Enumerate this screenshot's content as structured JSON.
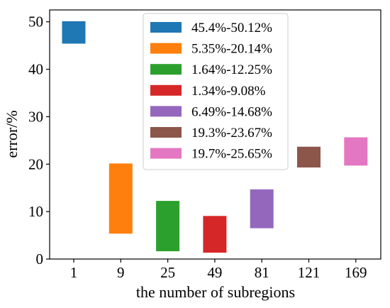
{
  "chart_data": {
    "type": "bar",
    "subtype": "floating-range",
    "xlabel": "the number of subregions",
    "ylabel": "error/%",
    "ylim": [
      0,
      52.5
    ],
    "yticks": [
      0,
      10,
      20,
      30,
      40,
      50
    ],
    "grid": false,
    "legend_position": "top-center",
    "categories": [
      "1",
      "9",
      "25",
      "49",
      "81",
      "121",
      "169"
    ],
    "series": [
      {
        "name": "45.4%-50.12%",
        "low": 45.4,
        "high": 50.12,
        "color": "#1f77b4"
      },
      {
        "name": "5.35%-20.14%",
        "low": 5.35,
        "high": 20.14,
        "color": "#ff7f0e"
      },
      {
        "name": "1.64%-12.25%",
        "low": 1.64,
        "high": 12.25,
        "color": "#2ca02c"
      },
      {
        "name": "1.34%-9.08%",
        "low": 1.34,
        "high": 9.08,
        "color": "#d62728"
      },
      {
        "name": "6.49%-14.68%",
        "low": 6.49,
        "high": 14.68,
        "color": "#9467bd"
      },
      {
        "name": "19.3%-23.67%",
        "low": 19.3,
        "high": 23.67,
        "color": "#8c564b"
      },
      {
        "name": "19.7%-25.65%",
        "low": 19.7,
        "high": 25.65,
        "color": "#e377c2"
      }
    ]
  }
}
